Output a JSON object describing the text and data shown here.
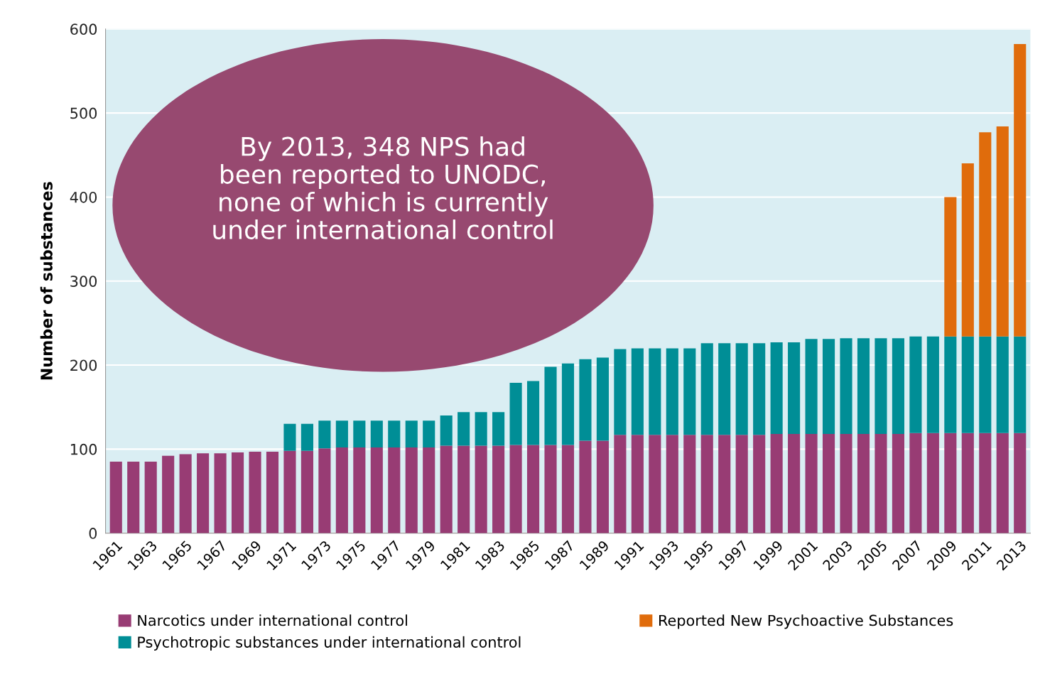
{
  "chart_data": {
    "type": "bar",
    "stacked": true,
    "ylabel": "Number of substances",
    "categories": [
      "1961",
      null,
      "1963",
      null,
      "1965",
      null,
      "1967",
      null,
      "1969",
      null,
      "1971",
      null,
      "1973",
      null,
      "1975",
      null,
      "1977",
      null,
      "1979",
      null,
      "1981",
      null,
      "1983",
      null,
      "1985",
      null,
      "1987",
      null,
      "1989",
      null,
      "1991",
      null,
      "1993",
      null,
      "1995",
      null,
      "1997",
      null,
      "1999",
      null,
      "2001",
      null,
      "2003",
      null,
      "2005",
      null,
      "2007",
      null,
      "2009",
      null,
      "2011",
      null,
      "2013"
    ],
    "series": [
      {
        "name": "Narcotics under international control",
        "color": "#983c74",
        "values": [
          85,
          85,
          85,
          92,
          94,
          95,
          95,
          96,
          97,
          97,
          98,
          98,
          101,
          102,
          102,
          102,
          102,
          102,
          102,
          104,
          104,
          104,
          104,
          105,
          105,
          105,
          105,
          110,
          110,
          117,
          117,
          117,
          117,
          117,
          117,
          117,
          117,
          117,
          118,
          118,
          118,
          118,
          118,
          118,
          118,
          118,
          119,
          119,
          119,
          119,
          119,
          119,
          119
        ]
      },
      {
        "name": "Psychotropic substances under international control",
        "color": "#008e96",
        "values": [
          0,
          0,
          0,
          0,
          0,
          0,
          0,
          0,
          0,
          0,
          32,
          32,
          33,
          32,
          32,
          32,
          32,
          32,
          32,
          36,
          40,
          40,
          40,
          74,
          76,
          93,
          97,
          97,
          99,
          102,
          103,
          103,
          103,
          103,
          109,
          109,
          109,
          109,
          109,
          109,
          113,
          113,
          114,
          114,
          114,
          114,
          115,
          115,
          115,
          115,
          115,
          115,
          115
        ]
      },
      {
        "name": "Reported New Psychoactive Substances",
        "color": "#e06c0c",
        "values": [
          0,
          0,
          0,
          0,
          0,
          0,
          0,
          0,
          0,
          0,
          0,
          0,
          0,
          0,
          0,
          0,
          0,
          0,
          0,
          0,
          0,
          0,
          0,
          0,
          0,
          0,
          0,
          0,
          0,
          0,
          0,
          0,
          0,
          0,
          0,
          0,
          0,
          0,
          0,
          0,
          0,
          0,
          0,
          0,
          0,
          0,
          0,
          0,
          166,
          206,
          243,
          250,
          348
        ]
      }
    ],
    "ylim": [
      0,
      600
    ],
    "yticks": [
      0,
      100,
      200,
      300,
      400,
      500,
      600
    ],
    "grid": "y",
    "legend": "bottom",
    "annotations": [
      "By 2013, 348 NPS had\nbeen reported to UNODC,\nnone of which is currently\nunder international control"
    ]
  }
}
